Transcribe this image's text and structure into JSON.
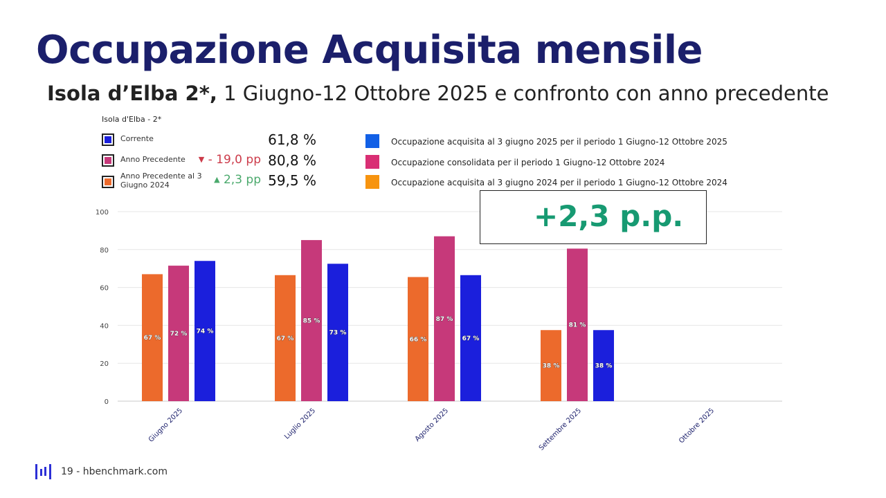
{
  "header": {
    "title": "Occupazione Acquisita mensile",
    "subtitle_bold": "Isola d’Elba 2*,",
    "subtitle_rest": " 1 Giugno-12 Ottobre 2025 e confronto con anno precedente"
  },
  "kpi": {
    "heading": "Isola d'Elba - 2*",
    "rows": [
      {
        "label": "Corrente",
        "delta": "",
        "value": "61,8 %",
        "color": "#1b1fdc"
      },
      {
        "label": "Anno Precedente",
        "delta": "- 19,0 pp",
        "direction": "down",
        "value": "80,8 %",
        "color": "#c6397a"
      },
      {
        "label": "Anno Precedente al 3 Giugno 2024",
        "delta": "2,3 pp",
        "direction": "up",
        "value": "59,5 %",
        "color": "#ec6a2c"
      }
    ]
  },
  "legend": {
    "items": [
      {
        "label": "Occupazione acquisita al 3 giugno 2025 per il periodo 1 Giugno-12 Ottobre 2025",
        "color": "#1260e6"
      },
      {
        "label": "Occupazione consolidata per il periodo 1 Giugno-12 Ottobre 2024",
        "color": "#d92f74"
      },
      {
        "label": "Occupazione acquisita al 3 giugno 2024 per il periodo 1 Giugno-12 Ottobre 2024",
        "color": "#f7940f"
      }
    ]
  },
  "callout": {
    "text": "+2,3 p.p.",
    "color": "#179a72"
  },
  "footer": {
    "text": "19 - hbenchmark.com"
  },
  "chart_data": {
    "type": "bar",
    "categories": [
      "Giugno 2025",
      "Luglio 2025",
      "Agosto 2025",
      "Settembre 2025",
      "Ottobre 2025"
    ],
    "series": [
      {
        "values": [
          67,
          66.5,
          65.5,
          37.5,
          null
        ],
        "labels": [
          "67 %",
          "67 %",
          "66 %",
          "38 %",
          ""
        ],
        "color": "#ec6a2c"
      },
      {
        "values": [
          71.5,
          85,
          87,
          80.5,
          null
        ],
        "labels": [
          "72 %",
          "85 %",
          "87 %",
          "81 %",
          ""
        ],
        "color": "#c6397a"
      },
      {
        "values": [
          74,
          72.5,
          66.5,
          37.5,
          null
        ],
        "labels": [
          "74 %",
          "73 %",
          "67 %",
          "38 %",
          ""
        ],
        "color": "#1b1fdc"
      }
    ],
    "ylim": [
      0,
      100
    ],
    "yticks": [
      0,
      20,
      40,
      60,
      80,
      100
    ],
    "grid": true
  }
}
